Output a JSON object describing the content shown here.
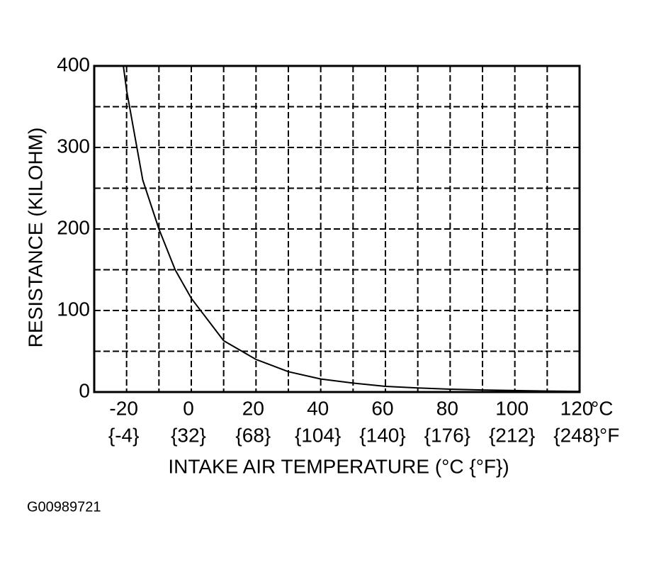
{
  "chart_data": {
    "type": "line",
    "ylabel": "RESISTANCE (KILOHM)",
    "xlabel": "INTAKE AIR TEMPERATURE (°C {°F})",
    "x_unit": "°C",
    "x2_unit": "°F",
    "footer": "G00989721",
    "x": [
      -21,
      -20,
      -15,
      -10,
      -5,
      0,
      10,
      20,
      30,
      40,
      50,
      60,
      70,
      80,
      90,
      100,
      110,
      120
    ],
    "values": [
      400,
      370,
      260,
      200,
      150,
      115,
      63,
      40,
      25,
      16,
      11,
      7,
      5,
      3.5,
      2.5,
      1.8,
      1.2,
      0.8
    ],
    "color": "#000000",
    "xlim": [
      -30,
      120
    ],
    "ylim": [
      0,
      400
    ],
    "xticks": [
      -20,
      0,
      20,
      40,
      60,
      80,
      100,
      120
    ],
    "x2_tick_labels": [
      "{-4}",
      "{32}",
      "{68}",
      "{104}",
      "{140}",
      "{176}",
      "{212}",
      "{248}"
    ],
    "minor_xticks": [
      -10,
      10,
      30,
      50,
      70,
      90,
      110
    ],
    "yticks": [
      0,
      100,
      200,
      300,
      400
    ],
    "minor_yticks": [
      50,
      150,
      250,
      350
    ],
    "grid": true
  }
}
